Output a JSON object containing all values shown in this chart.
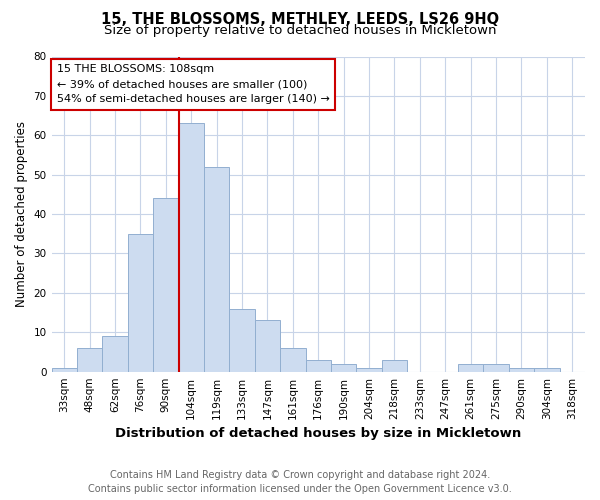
{
  "title": "15, THE BLOSSOMS, METHLEY, LEEDS, LS26 9HQ",
  "subtitle": "Size of property relative to detached houses in Mickletown",
  "xlabel": "Distribution of detached houses by size in Mickletown",
  "ylabel": "Number of detached properties",
  "categories": [
    "33sqm",
    "48sqm",
    "62sqm",
    "76sqm",
    "90sqm",
    "104sqm",
    "119sqm",
    "133sqm",
    "147sqm",
    "161sqm",
    "176sqm",
    "190sqm",
    "204sqm",
    "218sqm",
    "233sqm",
    "247sqm",
    "261sqm",
    "275sqm",
    "290sqm",
    "304sqm",
    "318sqm"
  ],
  "values": [
    1,
    6,
    9,
    35,
    44,
    63,
    52,
    16,
    13,
    6,
    3,
    2,
    1,
    3,
    0,
    0,
    2,
    2,
    1,
    1,
    0
  ],
  "bar_color": "#cddcf0",
  "bar_edge_color": "#92afd0",
  "vline_x": 5,
  "annotation_text_line1": "15 THE BLOSSOMS: 108sqm",
  "annotation_text_line2": "← 39% of detached houses are smaller (100)",
  "annotation_text_line3": "54% of semi-detached houses are larger (140) →",
  "annotation_box_color": "#ffffff",
  "annotation_box_edge_color": "#cc0000",
  "vline_color": "#cc0000",
  "ylim": [
    0,
    80
  ],
  "yticks": [
    0,
    10,
    20,
    30,
    40,
    50,
    60,
    70,
    80
  ],
  "footer_line1": "Contains HM Land Registry data © Crown copyright and database right 2024.",
  "footer_line2": "Contains public sector information licensed under the Open Government Licence v3.0.",
  "bg_color": "#ffffff",
  "grid_color": "#c8d4e8",
  "title_fontsize": 10.5,
  "subtitle_fontsize": 9.5,
  "xlabel_fontsize": 9.5,
  "ylabel_fontsize": 8.5,
  "tick_fontsize": 7.5,
  "footer_fontsize": 7,
  "annotation_fontsize": 8
}
